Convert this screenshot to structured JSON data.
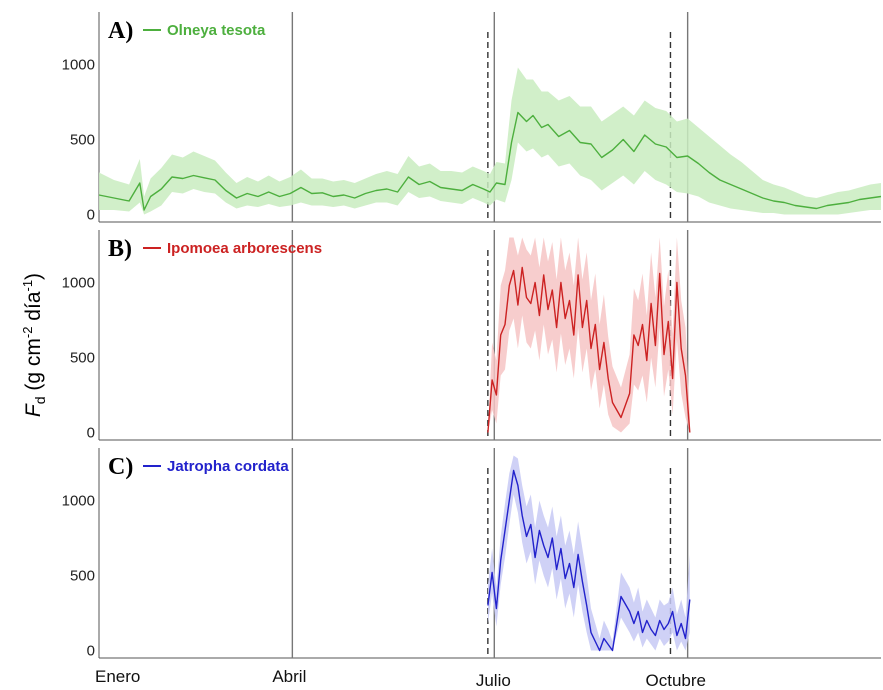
{
  "chart_data": {
    "type": "line",
    "ylabel": {
      "symbol": "F",
      "symbol_sub": "d",
      "units": "(g cm",
      "exp1": "-2",
      "mid": " día",
      "exp2": "-1",
      "close": ")"
    },
    "x_tick_labels": [
      "Enero",
      "Abril",
      "Julio",
      "Octubre"
    ],
    "x_domain": [
      1,
      365
    ],
    "x_ticks_doy": [
      1,
      91,
      182,
      274
    ],
    "reference_lines": {
      "solid_doy": [
        91,
        185,
        275
      ],
      "dashed_doy": [
        182,
        267
      ]
    },
    "grid": false,
    "legend": "none",
    "panels": [
      {
        "letter": "A)",
        "species": "Olneya tesota",
        "color": "#4daf3e",
        "band_color": "#c9ecc0",
        "ylim": [
          -50,
          1350
        ],
        "yticks": [
          0,
          500,
          1000
        ],
        "x": [
          1,
          8,
          15,
          20,
          22,
          25,
          30,
          35,
          40,
          45,
          50,
          55,
          60,
          65,
          70,
          75,
          80,
          85,
          90,
          95,
          100,
          105,
          110,
          115,
          120,
          125,
          130,
          135,
          140,
          145,
          150,
          155,
          160,
          165,
          170,
          175,
          180,
          183,
          186,
          190,
          193,
          196,
          200,
          203,
          207,
          210,
          215,
          220,
          225,
          230,
          235,
          240,
          245,
          250,
          255,
          260,
          265,
          270,
          275,
          280,
          285,
          290,
          295,
          300,
          305,
          310,
          315,
          320,
          325,
          330,
          335,
          340,
          345,
          350,
          355,
          360,
          365
        ],
        "y": [
          130,
          110,
          90,
          210,
          30,
          120,
          170,
          250,
          240,
          260,
          245,
          230,
          160,
          110,
          140,
          120,
          150,
          120,
          140,
          180,
          140,
          145,
          120,
          130,
          110,
          140,
          160,
          170,
          150,
          250,
          200,
          220,
          180,
          170,
          160,
          200,
          170,
          150,
          210,
          200,
          480,
          680,
          620,
          660,
          580,
          600,
          520,
          560,
          480,
          470,
          380,
          430,
          500,
          420,
          530,
          470,
          450,
          380,
          390,
          340,
          280,
          230,
          200,
          170,
          140,
          110,
          90,
          80,
          60,
          50,
          40,
          60,
          70,
          80,
          100,
          110,
          120
        ],
        "y_low": [
          30,
          30,
          20,
          80,
          0,
          20,
          60,
          150,
          140,
          170,
          150,
          140,
          80,
          40,
          60,
          50,
          70,
          50,
          60,
          80,
          60,
          60,
          50,
          60,
          40,
          60,
          80,
          80,
          60,
          150,
          110,
          120,
          90,
          80,
          70,
          110,
          80,
          60,
          100,
          80,
          230,
          480,
          420,
          440,
          380,
          400,
          320,
          340,
          260,
          230,
          160,
          210,
          260,
          200,
          290,
          230,
          200,
          150,
          140,
          120,
          80,
          60,
          40,
          30,
          20,
          10,
          10,
          0,
          0,
          0,
          0,
          0,
          0,
          10,
          20,
          30,
          30
        ],
        "y_high": [
          280,
          230,
          200,
          370,
          120,
          240,
          310,
          400,
          380,
          420,
          390,
          360,
          280,
          210,
          250,
          220,
          260,
          220,
          250,
          300,
          240,
          240,
          220,
          230,
          210,
          240,
          270,
          290,
          270,
          390,
          320,
          340,
          290,
          290,
          280,
          320,
          290,
          270,
          350,
          340,
          760,
          980,
          900,
          900,
          820,
          820,
          760,
          790,
          720,
          720,
          620,
          670,
          720,
          660,
          760,
          710,
          690,
          620,
          640,
          580,
          520,
          460,
          400,
          350,
          290,
          230,
          200,
          180,
          150,
          120,
          110,
          130,
          150,
          160,
          180,
          200,
          210
        ]
      },
      {
        "letter": "B)",
        "species": "Ipomoea arborescens",
        "color": "#cc2222",
        "band_color": "#f6c4c4",
        "ylim": [
          -50,
          1350
        ],
        "yticks": [
          0,
          500,
          1000
        ],
        "x": [
          182,
          184,
          186,
          188,
          190,
          192,
          194,
          196,
          198,
          200,
          202,
          204,
          206,
          208,
          210,
          212,
          214,
          216,
          218,
          220,
          222,
          224,
          226,
          228,
          230,
          232,
          234,
          236,
          238,
          240,
          244,
          248,
          250,
          252,
          254,
          256,
          258,
          260,
          262,
          264,
          266,
          268,
          270,
          272,
          274,
          276
        ],
        "y": [
          0,
          350,
          250,
          650,
          720,
          980,
          1080,
          850,
          1100,
          900,
          860,
          1000,
          780,
          1050,
          820,
          950,
          700,
          1000,
          760,
          880,
          650,
          1050,
          700,
          880,
          560,
          720,
          420,
          600,
          360,
          200,
          100,
          260,
          650,
          580,
          720,
          480,
          860,
          580,
          1060,
          520,
          740,
          360,
          1000,
          560,
          380,
          0
        ],
        "y_low": [
          0,
          150,
          60,
          380,
          420,
          680,
          760,
          560,
          780,
          600,
          560,
          680,
          480,
          720,
          520,
          620,
          400,
          660,
          450,
          560,
          360,
          700,
          400,
          560,
          280,
          420,
          160,
          320,
          120,
          40,
          0,
          60,
          320,
          280,
          380,
          200,
          500,
          300,
          700,
          240,
          420,
          120,
          620,
          260,
          100,
          0
        ],
        "y_high": [
          0,
          600,
          480,
          980,
          1080,
          1300,
          1300,
          1180,
          1300,
          1220,
          1180,
          1300,
          1100,
          1300,
          1140,
          1270,
          1020,
          1300,
          1080,
          1200,
          980,
          1300,
          1020,
          1200,
          880,
          1060,
          720,
          920,
          640,
          440,
          300,
          520,
          960,
          880,
          1060,
          780,
          1200,
          900,
          1300,
          840,
          1080,
          660,
          1300,
          880,
          700,
          120
        ]
      },
      {
        "letter": "C)",
        "species": "Jatropha cordata",
        "color": "#2222cc",
        "band_color": "#c7c9f4",
        "ylim": [
          -50,
          1350
        ],
        "yticks": [
          0,
          500,
          1000
        ],
        "x": [
          182,
          184,
          186,
          188,
          190,
          192,
          194,
          196,
          198,
          200,
          202,
          204,
          206,
          208,
          210,
          212,
          214,
          216,
          218,
          220,
          222,
          224,
          226,
          228,
          230,
          232,
          234,
          236,
          238,
          240,
          244,
          248,
          250,
          252,
          254,
          256,
          258,
          260,
          262,
          264,
          266,
          268,
          270,
          272,
          274,
          276
        ],
        "y": [
          300,
          520,
          280,
          600,
          800,
          1000,
          1200,
          1100,
          900,
          760,
          840,
          620,
          800,
          700,
          620,
          750,
          540,
          680,
          480,
          580,
          420,
          640,
          460,
          300,
          120,
          60,
          0,
          80,
          40,
          0,
          360,
          260,
          180,
          260,
          120,
          200,
          140,
          100,
          200,
          140,
          180,
          260,
          100,
          180,
          80,
          340
        ],
        "y_low": [
          180,
          380,
          160,
          440,
          620,
          840,
          1040,
          920,
          720,
          580,
          660,
          440,
          600,
          500,
          420,
          550,
          340,
          480,
          280,
          380,
          220,
          440,
          260,
          120,
          0,
          0,
          0,
          0,
          0,
          0,
          220,
          120,
          60,
          120,
          20,
          80,
          40,
          0,
          80,
          30,
          60,
          120,
          0,
          60,
          0,
          120
        ],
        "y_high": [
          440,
          680,
          420,
          760,
          980,
          1180,
          1300,
          1280,
          1100,
          960,
          1040,
          820,
          1000,
          900,
          820,
          960,
          760,
          900,
          700,
          800,
          640,
          860,
          680,
          500,
          280,
          180,
          80,
          200,
          140,
          60,
          520,
          420,
          320,
          420,
          260,
          340,
          280,
          220,
          340,
          300,
          320,
          420,
          240,
          340,
          220,
          640
        ]
      }
    ]
  }
}
